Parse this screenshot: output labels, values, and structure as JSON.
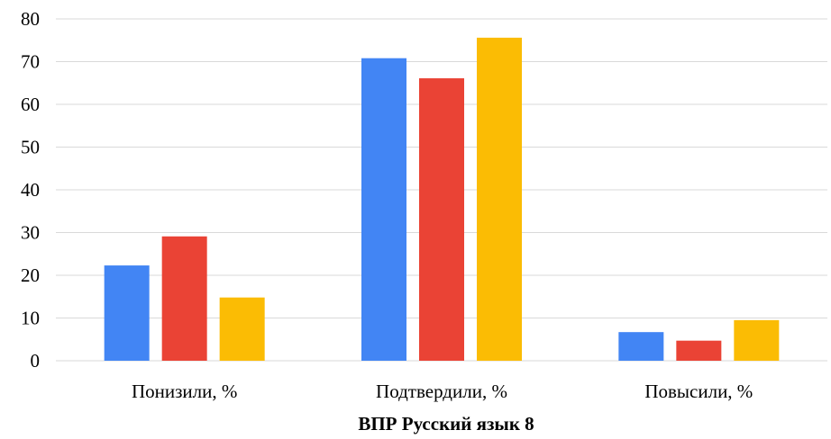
{
  "chart_data": {
    "type": "bar",
    "title": "",
    "xlabel": "ВПР Русский язык 8",
    "ylabel": "",
    "ylim": [
      0,
      80
    ],
    "yticks": [
      0,
      10,
      20,
      30,
      40,
      50,
      60,
      70,
      80
    ],
    "grid": true,
    "legend": "none",
    "categories": [
      "Понизили, %",
      "Подтвердили, %",
      "Повысили, %"
    ],
    "series": [
      {
        "values": [
          22.3,
          70.8,
          6.7
        ],
        "color": "#4285f4"
      },
      {
        "values": [
          29.1,
          66.1,
          4.7
        ],
        "color": "#ea4335"
      },
      {
        "values": [
          14.8,
          75.6,
          9.5
        ],
        "color": "#fbbc04"
      }
    ]
  }
}
